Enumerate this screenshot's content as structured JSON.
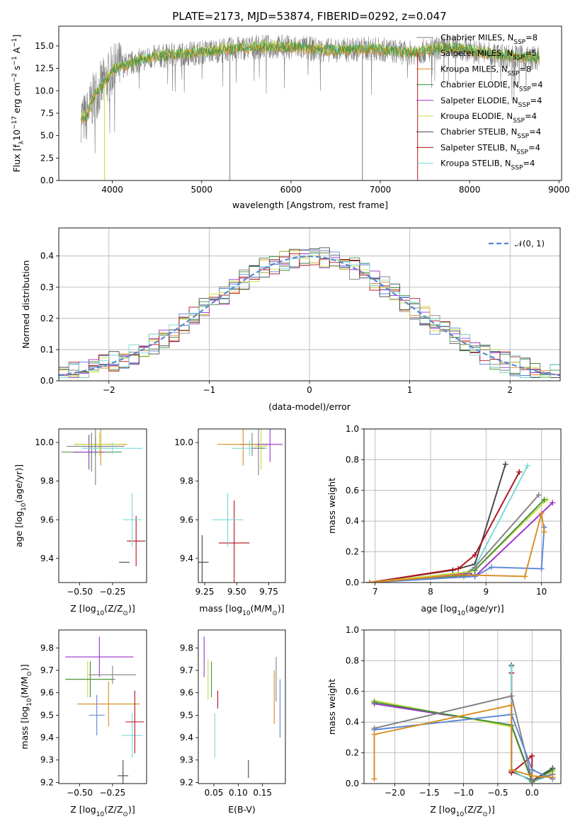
{
  "figure": {
    "title": "PLATE=2173, MJD=53874, FIBERID=0292, z=0.047"
  },
  "models": [
    {
      "label": "Chabrier MILES, N",
      "sub": "SSP",
      "eq": "=8",
      "color": "#808080"
    },
    {
      "label": "Salpeter MILES, N",
      "sub": "SSP",
      "eq": "=5",
      "color": "#7f7f7f"
    },
    {
      "label": "Kroupa MILES, N",
      "sub": "SSP",
      "eq": "=8",
      "color": "#d98b1f"
    },
    {
      "label": "Chabrier ELODIE, N",
      "sub": "SSP",
      "eq": "=4",
      "color": "#3f8f3f"
    },
    {
      "label": "Salpeter ELODIE, N",
      "sub": "SSP",
      "eq": "=4",
      "color": "#9b30c6"
    },
    {
      "label": "Kroupa ELODIE, N",
      "sub": "SSP",
      "eq": "=4",
      "color": "#c8dc3c"
    },
    {
      "label": "Chabrier STELIB, N",
      "sub": "SSP",
      "eq": "=4",
      "color": "#444444"
    },
    {
      "label": "Salpeter STELIB, N",
      "sub": "SSP",
      "eq": "=4",
      "color": "#b0101a"
    },
    {
      "label": "Kroupa STELIB, N",
      "sub": "SSP",
      "eq": "=4",
      "color": "#7ad8d8"
    }
  ],
  "chart_data": [
    {
      "id": "spectrum",
      "type": "line",
      "xlabel": "wavelength [Angstrom, rest frame]",
      "ylabel_pre": "Flux [f",
      "ylabel_sub": "λ",
      "ylabel_post": "10",
      "ylabel_sup1": "−17",
      "ylabel_mid": " erg cm",
      "ylabel_sup2": "−2",
      "ylabel_mid2": " s",
      "ylabel_sup3": "−1",
      "ylabel_mid3": " A",
      "ylabel_sup4": "−1",
      "ylabel_end": "]",
      "xlim": [
        3400,
        9030
      ],
      "ylim": [
        0,
        17.2
      ],
      "xticks": [
        4000,
        5000,
        6000,
        7000,
        8000,
        9000
      ],
      "yticks": [
        0.0,
        2.5,
        5.0,
        7.5,
        10.0,
        12.5,
        15.0
      ],
      "x_range_data": [
        3650,
        8780
      ],
      "envelope": {
        "x": [
          3650,
          3700,
          3800,
          3900,
          3950,
          4000,
          4100,
          4200,
          4300,
          4400,
          4500,
          4700,
          4900,
          5100,
          5300,
          5500,
          5700,
          5900,
          6100,
          6300,
          6500,
          6700,
          6900,
          7100,
          7300,
          7500,
          7700,
          7900,
          8100,
          8300,
          8500,
          8780
        ],
        "y": [
          7.2,
          6.8,
          9.5,
          10.8,
          11.4,
          12.2,
          12.8,
          13.0,
          13.4,
          13.6,
          13.8,
          14.0,
          14.2,
          14.4,
          14.6,
          14.8,
          14.9,
          14.9,
          14.8,
          14.6,
          14.5,
          14.6,
          14.7,
          14.5,
          14.2,
          14.4,
          14.8,
          14.7,
          14.3,
          14.0,
          13.8,
          13.6
        ]
      },
      "drops": [
        {
          "x": 3912,
          "to": 0.0
        },
        {
          "x": 5316,
          "to": 0.0
        },
        {
          "x": 6800,
          "to": 0.0
        },
        {
          "x": 7418,
          "to": 0.0
        }
      ]
    },
    {
      "id": "residuals",
      "type": "line",
      "xlabel": "(data-model)/error",
      "ylabel": "Normed distribution",
      "xlim": [
        -2.5,
        2.5
      ],
      "ylim": [
        0,
        0.49
      ],
      "xticks": [
        -2,
        -1,
        0,
        1,
        2
      ],
      "xtick_labels": [
        "−2",
        "−1",
        "0",
        "1",
        "2"
      ],
      "yticks": [
        0.0,
        0.1,
        0.2,
        0.3,
        0.4
      ],
      "reference_label": "𝒩(0, 1)",
      "reference_color": "#5b86d6",
      "bin_width": 0.1
    },
    {
      "id": "age-vs-Z",
      "type": "scatter",
      "xlabel_pre": "Z [log",
      "xlabel_sub": "10",
      "xlabel_post": "(Z/Z",
      "xlabel_sub2": "⊙",
      "xlabel_end": ")]",
      "ylabel_pre": "age  [log",
      "ylabel_sub": "10",
      "ylabel_post": "(age/yr)]",
      "xlim": [
        -0.66,
        0.01
      ],
      "ylim": [
        9.275,
        10.07
      ],
      "xticks": [
        -0.5,
        -0.25
      ],
      "xtick_labels": [
        "−0.50",
        "−0.25"
      ],
      "yticks": [
        9.4,
        9.6,
        9.8,
        10.0
      ],
      "yticks_labels": [
        "9.4",
        "9.6",
        "9.8",
        "10.0"
      ],
      "points": [
        {
          "model": 0,
          "x": -0.38,
          "y": 9.98,
          "xerr": 0.22,
          "yerr": 0.05
        },
        {
          "model": 2,
          "x": -0.34,
          "y": 9.99,
          "xerr": 0.2,
          "yerr": 0.11
        },
        {
          "model": 3,
          "x": -0.41,
          "y": 9.95,
          "xerr": 0.23,
          "yerr": 0.1
        },
        {
          "model": 4,
          "x": -0.43,
          "y": 9.95,
          "xerr": 0.12,
          "yerr": 0.09
        },
        {
          "model": 5,
          "x": -0.35,
          "y": 9.99,
          "xerr": 0.18,
          "yerr": 0.06
        },
        {
          "model": 1,
          "x": -0.38,
          "y": 9.98,
          "xerr": 0.1,
          "yerr": 0.2
        },
        {
          "model": 8,
          "x": -0.25,
          "y": 9.97,
          "xerr": 0.23,
          "yerr": 0.03
        },
        {
          "model": 6,
          "x": -0.16,
          "y": 9.38,
          "xerr": 0.04,
          "yerr": 0.0
        },
        {
          "model": 7,
          "x": -0.07,
          "y": 9.49,
          "xerr": 0.07,
          "yerr": 0.13
        },
        {
          "model": 8,
          "x": -0.1,
          "y": 9.6,
          "xerr": 0.07,
          "yerr": 0.14
        }
      ]
    },
    {
      "id": "age-vs-mass",
      "type": "scatter",
      "xlabel_pre": "mass [log",
      "xlabel_sub": "10",
      "xlabel_post": "(M/M",
      "xlabel_sub2": "⊙",
      "xlabel_end": ")]",
      "xlim": [
        9.2,
        9.88
      ],
      "ylim": [
        9.275,
        10.07
      ],
      "xticks": [
        9.25,
        9.5,
        9.75
      ],
      "xtick_labels": [
        "9.25",
        "9.50",
        "9.75"
      ],
      "yticks": [
        9.4,
        9.6,
        9.8,
        10.0
      ],
      "yticks_labels": [
        "9.4",
        "9.6",
        "9.8",
        "10.0"
      ],
      "points": [
        {
          "model": 0,
          "x": 9.62,
          "y": 9.99,
          "xerr": 0.1,
          "yerr": 0.06
        },
        {
          "model": 2,
          "x": 9.55,
          "y": 9.99,
          "xerr": 0.2,
          "yerr": 0.11
        },
        {
          "model": 4,
          "x": 9.76,
          "y": 9.99,
          "xerr": 0.1,
          "yerr": 0.09
        },
        {
          "model": 5,
          "x": 9.69,
          "y": 9.98,
          "xerr": 0.05,
          "yerr": 0.12
        },
        {
          "model": 8,
          "x": 9.6,
          "y": 9.97,
          "xerr": 0.14,
          "yerr": 0.04
        },
        {
          "model": 1,
          "x": 9.67,
          "y": 9.97,
          "xerr": 0.05,
          "yerr": 0.14
        },
        {
          "model": 6,
          "x": 9.23,
          "y": 9.38,
          "xerr": 0.05,
          "yerr": 0.14
        },
        {
          "model": 7,
          "x": 9.48,
          "y": 9.48,
          "xerr": 0.12,
          "yerr": 0.22
        },
        {
          "model": 8,
          "x": 9.43,
          "y": 9.6,
          "xerr": 0.12,
          "yerr": 0.14
        }
      ]
    },
    {
      "id": "weight-vs-age",
      "type": "line",
      "xlabel_pre": "age  [log",
      "xlabel_sub": "10",
      "xlabel_post": "(age/yr)]",
      "ylabel": "mass weight",
      "xlim": [
        6.8,
        10.35
      ],
      "ylim": [
        0,
        1.0
      ],
      "xticks": [
        7,
        8,
        9,
        10
      ],
      "yticks": [
        0.0,
        0.2,
        0.4,
        0.6,
        0.8,
        1.0
      ],
      "series": [
        {
          "model": 6,
          "x": [
            6.9,
            8.4,
            8.8,
            9.35
          ],
          "y": [
            0.0,
            0.08,
            0.12,
            0.77
          ]
        },
        {
          "model": 7,
          "x": [
            6.9,
            8.5,
            8.8,
            9.6
          ],
          "y": [
            0.0,
            0.09,
            0.18,
            0.72
          ]
        },
        {
          "model": 8,
          "x": [
            6.9,
            8.6,
            8.8,
            9.75
          ],
          "y": [
            0.0,
            0.06,
            0.1,
            0.76
          ]
        },
        {
          "model": 4,
          "x": [
            6.9,
            8.7,
            8.8,
            10.2
          ],
          "y": [
            0.0,
            0.06,
            0.04,
            0.52
          ]
        },
        {
          "model": 5,
          "x": [
            6.9,
            8.7,
            8.8,
            10.1
          ],
          "y": [
            0.0,
            0.07,
            0.08,
            0.54
          ]
        },
        {
          "model": 3,
          "x": [
            6.9,
            8.8,
            8.8,
            10.05
          ],
          "y": [
            0.0,
            0.05,
            0.08,
            0.54
          ]
        },
        {
          "model": 0,
          "x": [
            6.9,
            8.6,
            8.8,
            9.95
          ],
          "y": [
            0.0,
            0.04,
            0.1,
            0.57
          ]
        },
        {
          "model": 9,
          "x": [
            6.9,
            8.8,
            9.1,
            10.0,
            10.05
          ],
          "y": [
            0.0,
            0.04,
            0.1,
            0.09,
            0.36
          ]
        },
        {
          "model": 2,
          "x": [
            6.9,
            8.5,
            9.7,
            10.0,
            10.05
          ],
          "y": [
            0.0,
            0.05,
            0.04,
            0.45,
            0.33
          ]
        }
      ]
    },
    {
      "id": "mass-vs-Z",
      "type": "scatter",
      "xlabel_pre": "Z [log",
      "xlabel_sub": "10",
      "xlabel_post": "(Z/Z",
      "xlabel_sub2": "⊙",
      "xlabel_end": ")]",
      "ylabel_pre": "mass [log",
      "ylabel_sub": "10",
      "ylabel_post": "(M/M",
      "ylabel_sub2": "⊙",
      "ylabel_end": ")]",
      "xlim": [
        -0.66,
        0.01
      ],
      "ylim": [
        9.195,
        9.88
      ],
      "xticks": [
        -0.5,
        -0.25
      ],
      "xtick_labels": [
        "−0.50",
        "−0.25"
      ],
      "yticks": [
        9.2,
        9.3,
        9.4,
        9.5,
        9.6,
        9.7,
        9.8
      ],
      "yticks_labels": [
        "9.2",
        "9.3",
        "9.4",
        "9.5",
        "9.6",
        "9.7",
        "9.8"
      ],
      "points": [
        {
          "model": 4,
          "x": -0.35,
          "y": 9.76,
          "xerr": 0.26,
          "yerr": 0.09
        },
        {
          "model": 5,
          "x": -0.44,
          "y": 9.66,
          "xerr": 0.17,
          "yerr": 0.08
        },
        {
          "model": 3,
          "x": -0.42,
          "y": 9.66,
          "xerr": 0.19,
          "yerr": 0.08
        },
        {
          "model": 0,
          "x": -0.25,
          "y": 9.68,
          "xerr": 0.18,
          "yerr": 0.04
        },
        {
          "model": 2,
          "x": -0.28,
          "y": 9.55,
          "xerr": 0.24,
          "yerr": 0.1
        },
        {
          "model": 9,
          "x": -0.37,
          "y": 9.5,
          "xerr": 0.06,
          "yerr": 0.09
        },
        {
          "model": 8,
          "x": -0.1,
          "y": 9.41,
          "xerr": 0.08,
          "yerr": 0.1
        },
        {
          "model": 7,
          "x": -0.08,
          "y": 9.47,
          "xerr": 0.07,
          "yerr": 0.14
        },
        {
          "model": 6,
          "x": -0.17,
          "y": 9.23,
          "xerr": 0.04,
          "yerr": 0.07
        }
      ]
    },
    {
      "id": "mass-vs-EBV",
      "type": "scatter",
      "xlabel": "E(B-V)",
      "xlim": [
        0.018,
        0.197
      ],
      "ylim": [
        9.195,
        9.88
      ],
      "xticks": [
        0.05,
        0.1,
        0.15
      ],
      "xtick_labels": [
        "0.05",
        "0.10",
        "0.15"
      ],
      "yticks": [
        9.2,
        9.3,
        9.4,
        9.5,
        9.6,
        9.7,
        9.8
      ],
      "yticks_labels": [
        "9.2",
        "9.3",
        "9.4",
        "9.5",
        "9.6",
        "9.7",
        "9.8"
      ],
      "points": [
        {
          "model": 4,
          "x": 0.03,
          "y": 9.76,
          "yerr": 0.09
        },
        {
          "model": 5,
          "x": 0.038,
          "y": 9.66,
          "yerr": 0.09
        },
        {
          "model": 3,
          "x": 0.045,
          "y": 9.66,
          "yerr": 0.08
        },
        {
          "model": 7,
          "x": 0.058,
          "y": 9.57,
          "yerr": 0.04
        },
        {
          "model": 8,
          "x": 0.052,
          "y": 9.41,
          "yerr": 0.1
        },
        {
          "model": 6,
          "x": 0.121,
          "y": 9.26,
          "yerr": 0.04
        },
        {
          "model": 2,
          "x": 0.174,
          "y": 9.58,
          "yerr": 0.12
        },
        {
          "model": 0,
          "x": 0.178,
          "y": 9.66,
          "yerr": 0.1
        },
        {
          "model": 9,
          "x": 0.186,
          "y": 9.53,
          "yerr": 0.13
        }
      ]
    },
    {
      "id": "weight-vs-Z",
      "type": "line",
      "xlabel_pre": "Z [log",
      "xlabel_sub": "10",
      "xlabel_post": "(Z/Z",
      "xlabel_sub2": "⊙",
      "xlabel_end": ")]",
      "ylabel": "mass weight",
      "xlim": [
        -2.45,
        0.42
      ],
      "ylim": [
        0,
        1.0
      ],
      "xticks": [
        -2.0,
        -1.5,
        -1.0,
        -0.5,
        0.0
      ],
      "xtick_labels": [
        "−2.0",
        "−1.5",
        "−1.0",
        "−0.5",
        "0.0"
      ],
      "yticks": [
        0.0,
        0.2,
        0.4,
        0.6,
        0.8,
        1.0
      ],
      "series": [
        {
          "model": 6,
          "x": [
            -0.3,
            -0.3,
            0.0,
            0.3
          ],
          "y": [
            0.77,
            0.08,
            0.02,
            0.1
          ]
        },
        {
          "model": 7,
          "x": [
            -0.3,
            -0.3,
            0.0,
            0.0
          ],
          "y": [
            0.72,
            0.07,
            0.18,
            0.02
          ]
        },
        {
          "model": 8,
          "x": [
            -0.3,
            -0.3,
            0.0,
            0.3
          ],
          "y": [
            0.76,
            0.09,
            0.01,
            0.06
          ]
        },
        {
          "model": 4,
          "x": [
            -2.3,
            -0.3,
            0.0,
            0.3
          ],
          "y": [
            0.52,
            0.38,
            0.02,
            0.06
          ]
        },
        {
          "model": 5,
          "x": [
            -2.3,
            -0.3,
            0.0,
            0.3
          ],
          "y": [
            0.54,
            0.37,
            0.01,
            0.08
          ]
        },
        {
          "model": 3,
          "x": [
            -2.3,
            -0.3,
            0.0,
            0.3
          ],
          "y": [
            0.53,
            0.38,
            0.01,
            0.09
          ]
        },
        {
          "model": 0,
          "x": [
            -2.3,
            -0.3,
            0.0,
            0.3
          ],
          "y": [
            0.36,
            0.57,
            0.02,
            0.06
          ]
        },
        {
          "model": 9,
          "x": [
            -2.3,
            -0.3,
            0.0,
            0.3
          ],
          "y": [
            0.35,
            0.45,
            0.09,
            0.03
          ]
        },
        {
          "model": 2,
          "x": [
            -2.3,
            -2.3,
            -0.3,
            -0.3,
            0.0,
            0.3
          ],
          "y": [
            0.03,
            0.32,
            0.51,
            0.09,
            0.05,
            0.04
          ]
        }
      ]
    }
  ]
}
